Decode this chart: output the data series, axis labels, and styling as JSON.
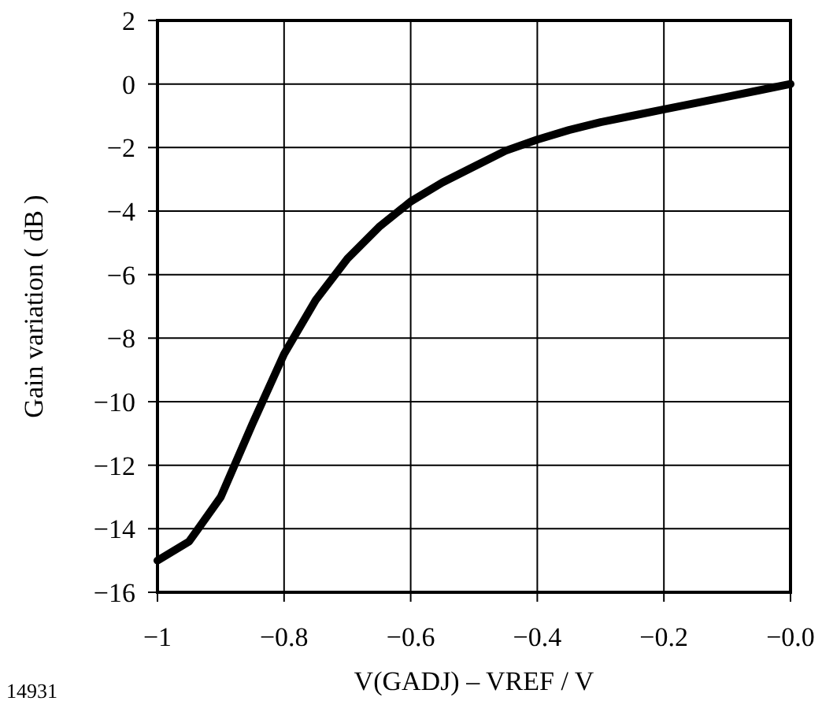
{
  "chart_data": {
    "type": "line",
    "xlabel": "V(GADJ) – VREF / V",
    "ylabel": "Gain variation ( dB )",
    "annotations": [
      "14931"
    ],
    "x": [
      -1,
      -0.95,
      -0.9,
      -0.85,
      -0.8,
      -0.75,
      -0.7,
      -0.65,
      -0.6,
      -0.55,
      -0.5,
      -0.45,
      -0.4,
      -0.35,
      -0.3,
      -0.25,
      -0.2,
      -0.15,
      -0.1,
      -0.05,
      0
    ],
    "series": [
      {
        "color": "#000000",
        "values": [
          -15,
          -14.4,
          -13,
          -10.7,
          -8.5,
          -6.8,
          -5.5,
          -4.5,
          -3.7,
          -3.1,
          -2.6,
          -2.1,
          -1.75,
          -1.45,
          -1.2,
          -1.0,
          -0.8,
          -0.6,
          -0.4,
          -0.2,
          0
        ]
      }
    ],
    "xlim": [
      -1,
      0
    ],
    "xticks": [
      -1,
      -0.8,
      -0.6,
      -0.4,
      -0.2,
      {
        "value": 0,
        "label": "−0.0"
      }
    ],
    "ylim": [
      -16,
      2
    ],
    "yticks": [
      -16,
      -14,
      -12,
      -10,
      -8,
      -6,
      -4,
      -2,
      0,
      2
    ],
    "grid": true,
    "marker": "none",
    "line_style": "solid"
  }
}
